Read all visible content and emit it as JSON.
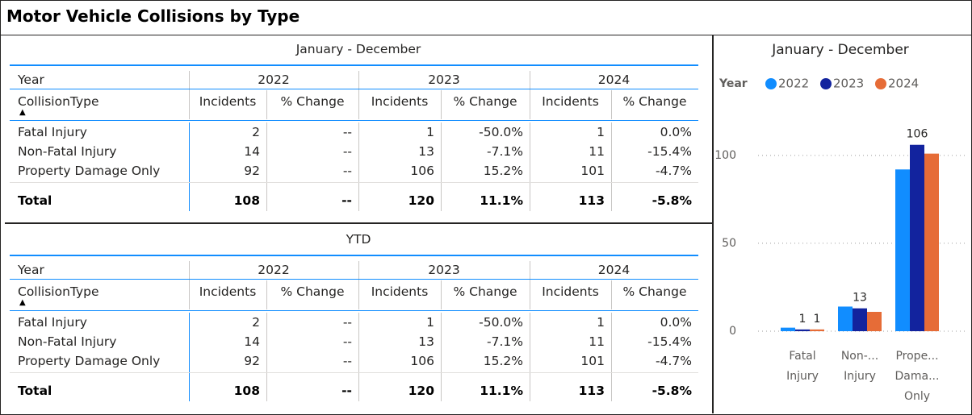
{
  "header": {
    "title": "Motor Vehicle Collisions by Type"
  },
  "tables": [
    {
      "title": "January - December",
      "year_label": "Year",
      "years": [
        "2022",
        "2023",
        "2024"
      ],
      "row_label": "CollisionType",
      "columns": [
        "Incidents",
        "% Change"
      ],
      "rows": [
        [
          "Fatal Injury",
          "2",
          "--",
          "1",
          "-50.0%",
          "1",
          "0.0%"
        ],
        [
          "Non-Fatal Injury",
          "14",
          "--",
          "13",
          "-7.1%",
          "11",
          "-15.4%"
        ],
        [
          "Property Damage Only",
          "92",
          "--",
          "106",
          "15.2%",
          "101",
          "-4.7%"
        ]
      ],
      "total": [
        "Total",
        "108",
        "--",
        "120",
        "11.1%",
        "113",
        "-5.8%"
      ]
    },
    {
      "title": "YTD",
      "year_label": "Year",
      "years": [
        "2022",
        "2023",
        "2024"
      ],
      "row_label": "CollisionType",
      "columns": [
        "Incidents",
        "% Change"
      ],
      "rows": [
        [
          "Fatal Injury",
          "2",
          "--",
          "1",
          "-50.0%",
          "1",
          "0.0%"
        ],
        [
          "Non-Fatal Injury",
          "14",
          "--",
          "13",
          "-7.1%",
          "11",
          "-15.4%"
        ],
        [
          "Property Damage Only",
          "92",
          "--",
          "106",
          "15.2%",
          "101",
          "-4.7%"
        ]
      ],
      "total": [
        "Total",
        "108",
        "--",
        "120",
        "11.1%",
        "113",
        "-5.8%"
      ]
    }
  ],
  "chart_data": {
    "type": "bar",
    "title": "January - December",
    "legend_title": "Year",
    "categories": [
      [
        "Fatal",
        "Injury"
      ],
      [
        "Non-...",
        "Injury"
      ],
      [
        "Prope...",
        "Dama...",
        "Only"
      ]
    ],
    "series": [
      {
        "name": "2022",
        "color": "#118dff",
        "values": [
          2,
          14,
          92
        ],
        "value_labels": [
          null,
          null,
          null
        ]
      },
      {
        "name": "2023",
        "color": "#12239e",
        "values": [
          1,
          13,
          106
        ],
        "value_labels": [
          "1",
          "13",
          "106"
        ]
      },
      {
        "name": "2024",
        "color": "#e66c37",
        "values": [
          1,
          11,
          101
        ],
        "value_labels": [
          "1",
          null,
          null
        ]
      }
    ],
    "ylim": [
      0,
      110
    ],
    "yticks": [
      0,
      50,
      100
    ],
    "grid": true
  }
}
